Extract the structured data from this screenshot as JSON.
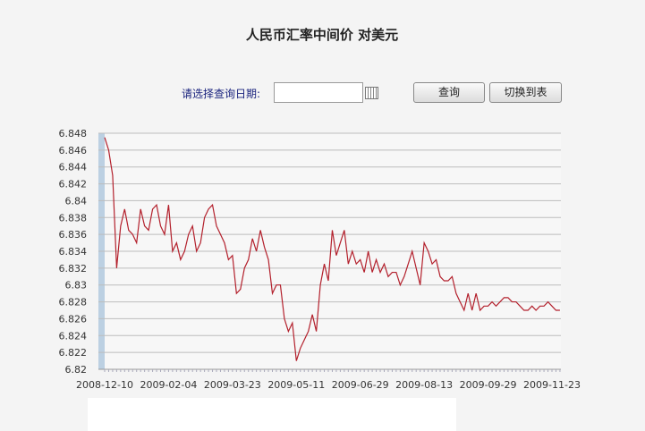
{
  "date_label": "请选择查询日期:",
  "buttons": [
    "查询",
    "切换到表"
  ],
  "chart_data": {
    "type": "line",
    "title": "人民币汇率中间价 对美元",
    "categories": [
      "2008-12-10",
      null,
      null,
      null,
      null,
      null,
      null,
      null,
      null,
      null,
      null,
      null,
      null,
      null,
      null,
      null,
      "2009-02-04",
      null,
      null,
      null,
      null,
      null,
      null,
      null,
      null,
      null,
      null,
      null,
      null,
      null,
      null,
      null,
      "2009-03-23",
      null,
      null,
      null,
      null,
      null,
      null,
      null,
      null,
      null,
      null,
      null,
      null,
      null,
      null,
      null,
      "2009-05-11",
      null,
      null,
      null,
      null,
      null,
      null,
      null,
      null,
      null,
      null,
      null,
      null,
      null,
      null,
      null,
      "2009-06-29",
      null,
      null,
      null,
      null,
      null,
      null,
      null,
      null,
      null,
      null,
      null,
      null,
      null,
      null,
      null,
      "2009-08-13",
      null,
      null,
      null,
      null,
      null,
      null,
      null,
      null,
      null,
      null,
      null,
      null,
      null,
      null,
      null,
      "2009-09-29",
      null,
      null,
      null,
      null,
      null,
      null,
      null,
      null,
      null,
      null,
      null,
      null,
      null,
      null,
      null,
      "2009-11-23",
      null,
      null
    ],
    "series": [
      {
        "name": "对美元",
        "color": "#b3202c",
        "values": [
          6.8475,
          6.846,
          6.843,
          6.832,
          6.837,
          6.839,
          6.8365,
          6.836,
          6.835,
          6.839,
          6.837,
          6.8365,
          6.839,
          6.8395,
          6.837,
          6.836,
          6.8395,
          6.834,
          6.835,
          6.833,
          6.834,
          6.836,
          6.837,
          6.834,
          6.835,
          6.838,
          6.839,
          6.8395,
          6.837,
          6.836,
          6.835,
          6.833,
          6.8335,
          6.829,
          6.8295,
          6.832,
          6.833,
          6.8355,
          6.834,
          6.8365,
          6.8345,
          6.833,
          6.829,
          6.83,
          6.83,
          6.826,
          6.8245,
          6.8255,
          6.821,
          6.8225,
          6.8235,
          6.8245,
          6.8265,
          6.8245,
          6.83,
          6.8325,
          6.8305,
          6.8365,
          6.8335,
          6.835,
          6.8365,
          6.8325,
          6.834,
          6.8325,
          6.833,
          6.8315,
          6.834,
          6.8315,
          6.833,
          6.8315,
          6.8325,
          6.831,
          6.8315,
          6.8315,
          6.83,
          6.831,
          6.8325,
          6.834,
          6.832,
          6.83,
          6.835,
          6.834,
          6.8325,
          6.833,
          6.831,
          6.8305,
          6.8305,
          6.831,
          6.829,
          6.828,
          6.827,
          6.829,
          6.827,
          6.829,
          6.827,
          6.8275,
          6.8275,
          6.828,
          6.8275,
          6.828,
          6.8285,
          6.8285,
          6.828,
          6.828,
          6.8275,
          6.827,
          6.827,
          6.8275,
          6.827,
          6.8275,
          6.8275,
          6.828,
          6.8275,
          6.827,
          6.827
        ]
      }
    ],
    "ylim": [
      6.82,
      6.848
    ],
    "yticks": [
      6.82,
      6.822,
      6.824,
      6.826,
      6.828,
      6.83,
      6.832,
      6.834,
      6.836,
      6.838,
      6.84,
      6.842,
      6.844,
      6.846,
      6.848
    ],
    "grid": true
  }
}
